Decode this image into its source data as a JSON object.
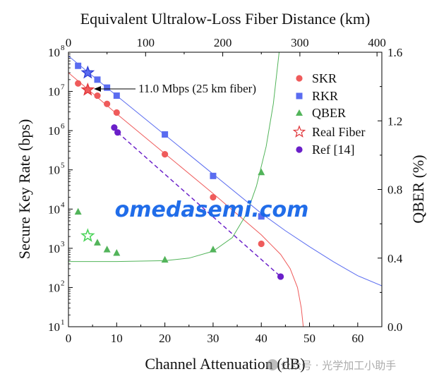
{
  "chart_data": {
    "type": "scatter",
    "x_axis_bottom": {
      "label": "Channel Attenuation (dB)",
      "range": [
        0,
        65
      ],
      "ticks": [
        "0",
        "10",
        "20",
        "30",
        "40",
        "50",
        "60"
      ]
    },
    "x_axis_top": {
      "label": "Equivalent Ultralow-Loss Fiber Distance (km)",
      "range": [
        0,
        406.25
      ],
      "ticks": [
        "0",
        "100",
        "200",
        "300",
        "400"
      ]
    },
    "y_axis_left": {
      "label": "Secure Key Rate (bps)",
      "scale": "log",
      "range": [
        10,
        100000000
      ],
      "tick_values": [
        10,
        100,
        1000,
        10000,
        100000,
        1000000,
        10000000,
        100000000
      ],
      "tick_exponents": [
        "1",
        "2",
        "3",
        "4",
        "5",
        "6",
        "7",
        "8"
      ]
    },
    "y_axis_right": {
      "label": "QBER (%)",
      "range": [
        0.0,
        1.6
      ],
      "ticks": [
        "0.0",
        "0.4",
        "0.8",
        "1.2",
        "1.6"
      ]
    },
    "legend": {
      "placement": "top-right",
      "entries": [
        "SKR",
        "RKR",
        "QBER",
        "Real Fiber",
        "Ref [14]"
      ]
    },
    "annotation": "11.0 Mbps (25 km fiber)",
    "colors": {
      "skr": "#ef5b5b",
      "rkr": "#5a6cf0",
      "qber": "#52b45a",
      "real_fiber_skr": "#e0353a",
      "real_fiber_rkr": "#2f3ed4",
      "real_fiber_qber": "#4cd45a",
      "ref": "#6a1fc9"
    },
    "series": [
      {
        "name": "SKR",
        "axis": "left",
        "points": [
          {
            "x": 2,
            "y": 16000000
          },
          {
            "x": 6,
            "y": 7800000
          },
          {
            "x": 8,
            "y": 4800000
          },
          {
            "x": 10,
            "y": 2900000
          },
          {
            "x": 20,
            "y": 250000
          },
          {
            "x": 30,
            "y": 20000
          },
          {
            "x": 40,
            "y": 1300
          }
        ],
        "fit_curve": [
          {
            "x": 0,
            "y": 30000000
          },
          {
            "x": 10,
            "y": 2700000
          },
          {
            "x": 20,
            "y": 260000
          },
          {
            "x": 30,
            "y": 25000
          },
          {
            "x": 40,
            "y": 2200
          },
          {
            "x": 44,
            "y": 700
          },
          {
            "x": 46,
            "y": 300
          },
          {
            "x": 47.5,
            "y": 100
          },
          {
            "x": 48.3,
            "y": 30
          },
          {
            "x": 48.7,
            "y": 10
          }
        ]
      },
      {
        "name": "RKR",
        "axis": "left",
        "points": [
          {
            "x": 2,
            "y": 45000000
          },
          {
            "x": 6,
            "y": 20000000
          },
          {
            "x": 8,
            "y": 12500000
          },
          {
            "x": 10,
            "y": 7800000
          },
          {
            "x": 20,
            "y": 800000
          },
          {
            "x": 30,
            "y": 70000
          },
          {
            "x": 40,
            "y": 6500
          }
        ],
        "fit_curve": [
          {
            "x": 0,
            "y": 80000000
          },
          {
            "x": 10,
            "y": 7800000
          },
          {
            "x": 20,
            "y": 780000
          },
          {
            "x": 30,
            "y": 78000
          },
          {
            "x": 40,
            "y": 7800
          },
          {
            "x": 45,
            "y": 2800
          },
          {
            "x": 50,
            "y": 1100
          },
          {
            "x": 55,
            "y": 450
          },
          {
            "x": 60,
            "y": 200
          },
          {
            "x": 65,
            "y": 110
          }
        ]
      },
      {
        "name": "QBER",
        "axis": "right",
        "points": [
          {
            "x": 2,
            "y": 0.67
          },
          {
            "x": 6,
            "y": 0.49
          },
          {
            "x": 8,
            "y": 0.45
          },
          {
            "x": 10,
            "y": 0.43
          },
          {
            "x": 20,
            "y": 0.39
          },
          {
            "x": 30,
            "y": 0.45
          },
          {
            "x": 40,
            "y": 0.9
          }
        ],
        "fit_curve": [
          {
            "x": 0,
            "y": 0.38
          },
          {
            "x": 10,
            "y": 0.38
          },
          {
            "x": 20,
            "y": 0.385
          },
          {
            "x": 25,
            "y": 0.4
          },
          {
            "x": 30,
            "y": 0.44
          },
          {
            "x": 34,
            "y": 0.52
          },
          {
            "x": 37,
            "y": 0.66
          },
          {
            "x": 39,
            "y": 0.82
          },
          {
            "x": 41,
            "y": 1.05
          },
          {
            "x": 42.5,
            "y": 1.3
          },
          {
            "x": 43.7,
            "y": 1.6
          }
        ]
      },
      {
        "name": "Real Fiber",
        "axis": "mixed",
        "points": [
          {
            "x": 4,
            "y": 11000000,
            "axis": "left",
            "of": "SKR"
          },
          {
            "x": 4,
            "y": 30000000,
            "axis": "left",
            "of": "RKR"
          },
          {
            "x": 4,
            "y": 0.53,
            "axis": "right",
            "of": "QBER"
          }
        ]
      },
      {
        "name": "Ref [14]",
        "axis": "left",
        "points": [
          {
            "x": 9.5,
            "y": 1200000
          },
          {
            "x": 10.2,
            "y": 900000
          },
          {
            "x": 44,
            "y": 190
          }
        ],
        "dashed_line": [
          {
            "x": 10.2,
            "y": 900000
          },
          {
            "x": 44,
            "y": 190
          }
        ]
      }
    ]
  },
  "watermark": {
    "brand": "omedasemi.com",
    "source": "公众号 · 光学加工小助手"
  }
}
